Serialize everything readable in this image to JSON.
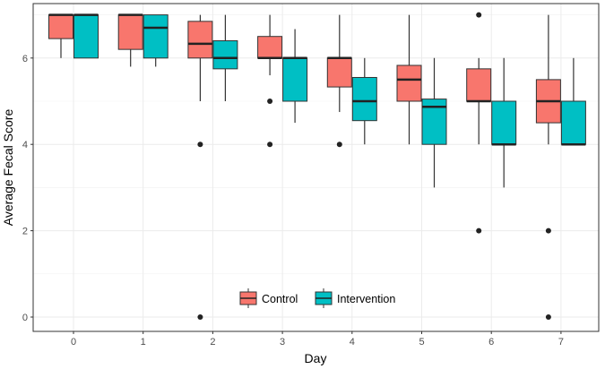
{
  "chart_data": {
    "type": "box",
    "title": "",
    "xlabel": "Day",
    "ylabel": "Average Fecal Score",
    "categories": [
      "0",
      "1",
      "2",
      "3",
      "4",
      "5",
      "6",
      "7"
    ],
    "yticks": [
      0,
      2,
      4,
      6
    ],
    "ylim": [
      0,
      7
    ],
    "grid": true,
    "legend_position": "bottom-center-inside",
    "series": [
      {
        "name": "Control",
        "color": "#F8766D",
        "boxes": [
          {
            "low": 6,
            "q1": 6.45,
            "median": 7,
            "q3": 7,
            "high": 7,
            "outliers": []
          },
          {
            "low": 5.8,
            "q1": 6.2,
            "median": 7,
            "q3": 7,
            "high": 7,
            "outliers": []
          },
          {
            "low": 5,
            "q1": 6,
            "median": 6.33,
            "q3": 6.85,
            "high": 7,
            "outliers": [
              4,
              0
            ]
          },
          {
            "low": 5.6,
            "q1": 6,
            "median": 6,
            "q3": 6.5,
            "high": 7,
            "outliers": [
              5,
              4
            ]
          },
          {
            "low": 4.75,
            "q1": 5.33,
            "median": 6,
            "q3": 6,
            "high": 7,
            "outliers": [
              4
            ]
          },
          {
            "low": 4,
            "q1": 5,
            "median": 5.5,
            "q3": 5.83,
            "high": 7,
            "outliers": []
          },
          {
            "low": 4,
            "q1": 5,
            "median": 5,
            "q3": 5.75,
            "high": 6,
            "outliers": [
              7,
              2
            ]
          },
          {
            "low": 4,
            "q1": 4.5,
            "median": 5,
            "q3": 5.5,
            "high": 7,
            "outliers": [
              2,
              0
            ]
          }
        ]
      },
      {
        "name": "Intervention",
        "color": "#00BFC4",
        "boxes": [
          {
            "low": 6,
            "q1": 6,
            "median": 7,
            "q3": 7,
            "high": 7,
            "outliers": []
          },
          {
            "low": 5.8,
            "q1": 6,
            "median": 6.7,
            "q3": 7,
            "high": 7,
            "outliers": []
          },
          {
            "low": 5,
            "q1": 5.75,
            "median": 6,
            "q3": 6.4,
            "high": 7,
            "outliers": []
          },
          {
            "low": 4.5,
            "q1": 5,
            "median": 6,
            "q3": 6,
            "high": 6.67,
            "outliers": []
          },
          {
            "low": 4,
            "q1": 4.55,
            "median": 5,
            "q3": 5.55,
            "high": 6,
            "outliers": []
          },
          {
            "low": 3,
            "q1": 4,
            "median": 4.87,
            "q3": 5.05,
            "high": 6,
            "outliers": []
          },
          {
            "low": 3,
            "q1": 4,
            "median": 4,
            "q3": 5,
            "high": 6,
            "outliers": []
          },
          {
            "low": 4,
            "q1": 4,
            "median": 4,
            "q3": 5,
            "high": 6,
            "outliers": []
          }
        ]
      }
    ]
  }
}
